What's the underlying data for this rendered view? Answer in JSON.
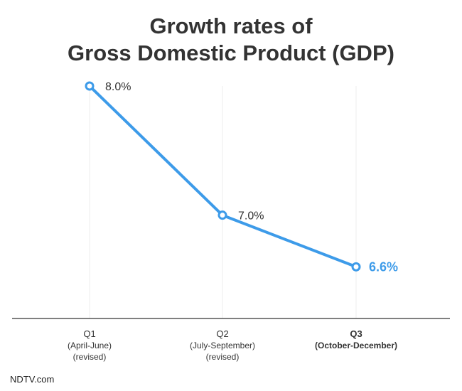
{
  "chart_data": {
    "type": "line",
    "title_line1": "Growth rates of",
    "title_line2": "Gross Domestic Product (GDP)",
    "categories": [
      {
        "name": "Q1",
        "sub": [
          "(April-June)",
          "(revised)"
        ]
      },
      {
        "name": "Q2",
        "sub": [
          "(July-September)",
          "(revised)"
        ]
      },
      {
        "name": "Q3",
        "sub": [
          "(October-December)"
        ]
      }
    ],
    "values": [
      8.0,
      7.0,
      6.6
    ],
    "data_labels": [
      "8.0%",
      "7.0%",
      "6.6%"
    ],
    "highlight_index": 2,
    "ylim": [
      6.2,
      8.0
    ],
    "xlabel": "",
    "ylabel": "",
    "colors": {
      "line": "#3d9be9",
      "highlight_label": "#3d9be9",
      "text": "#333333",
      "axis": "#333333",
      "grid": "#eeeeee"
    }
  },
  "footer": {
    "brand": "NDTV.com"
  }
}
